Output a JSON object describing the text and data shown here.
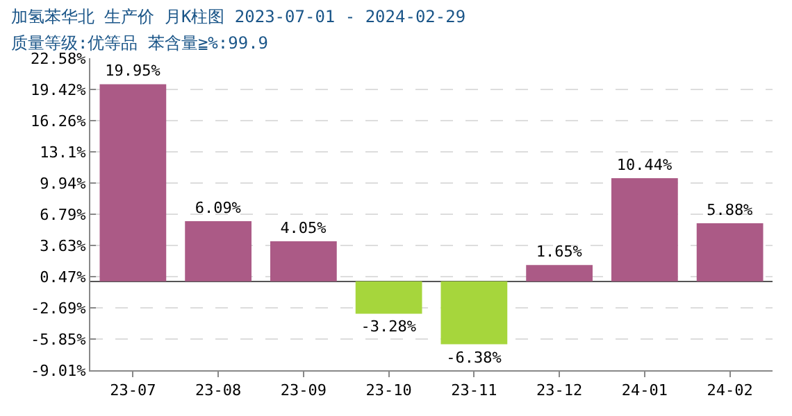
{
  "chart_data": {
    "type": "bar",
    "title": "加氢苯华北 生产价 月K柱图 2023-07-01 - 2024-02-29",
    "subtitle": "质量等级:优等品 苯含量≧%:99.9",
    "categories": [
      "23-07",
      "23-08",
      "23-09",
      "23-10",
      "23-11",
      "23-12",
      "24-01",
      "24-02"
    ],
    "values": [
      19.95,
      6.09,
      4.05,
      -3.28,
      -6.38,
      1.65,
      10.44,
      5.88
    ],
    "colors": [
      "#ab5a86",
      "#ab5a86",
      "#ab5a86",
      "#a6d63c",
      "#a6d63c",
      "#ab5a86",
      "#ab5a86",
      "#ab5a86"
    ],
    "value_labels": [
      "19.95%",
      "6.09%",
      "4.05%",
      "-3.28%",
      "-6.38%",
      "1.65%",
      "10.44%",
      "5.88%"
    ],
    "ylim": [
      -9.01,
      22.58
    ],
    "yticks": [
      {
        "value": -9.01,
        "label": "-9.01%"
      },
      {
        "value": -5.85,
        "label": "-5.85%"
      },
      {
        "value": -2.69,
        "label": "-2.69%"
      },
      {
        "value": 0.47,
        "label": "0.47%"
      },
      {
        "value": 3.63,
        "label": "3.63%"
      },
      {
        "value": 6.79,
        "label": "6.79%"
      },
      {
        "value": 9.94,
        "label": "9.94%"
      },
      {
        "value": 13.1,
        "label": "13.1%"
      },
      {
        "value": 16.26,
        "label": "16.26%"
      },
      {
        "value": 19.42,
        "label": "19.42%"
      },
      {
        "value": 22.58,
        "label": "22.58%"
      }
    ],
    "grid": "y"
  }
}
